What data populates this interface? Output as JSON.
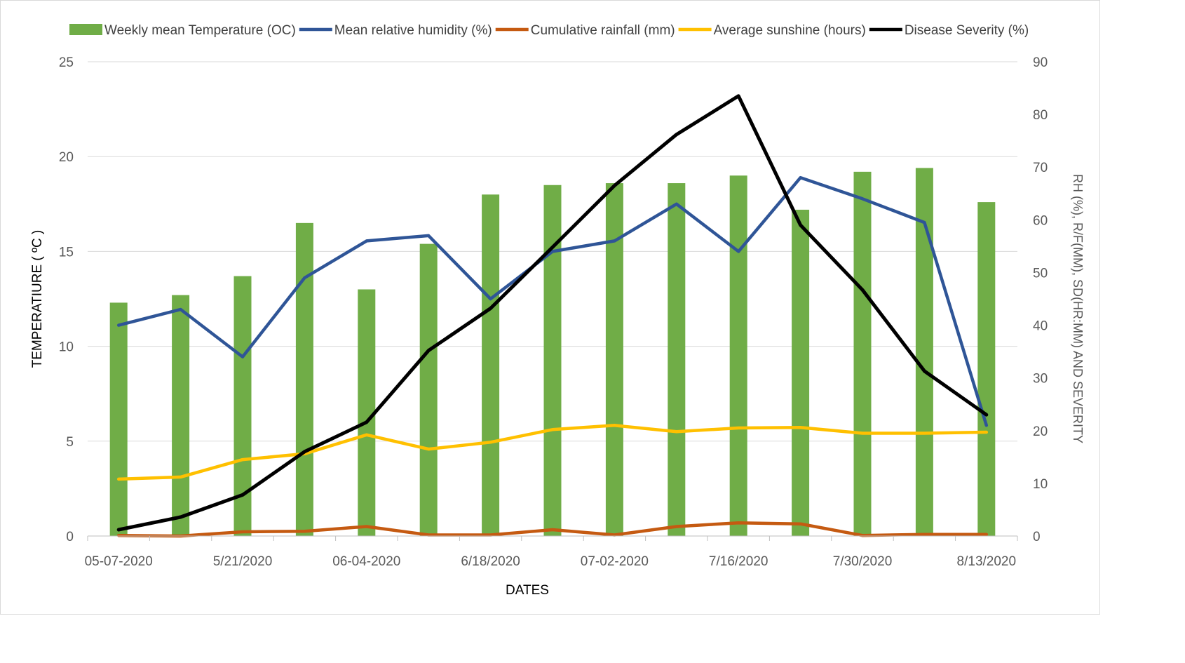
{
  "chart_data": {
    "type": "bar",
    "title": "",
    "xlabel": "DATES",
    "ylabel": "TEMPERATIURE ( ºC )",
    "y2label": "RH (%), R/F(MM), SD(HR:MM) AND SEVERITY",
    "ylim": [
      0,
      25
    ],
    "y2lim": [
      0,
      90
    ],
    "y_ticks": [
      "0",
      "5",
      "10",
      "15",
      "20",
      "25"
    ],
    "y2_ticks": [
      "0",
      "10",
      "20",
      "30",
      "40",
      "50",
      "60",
      "70",
      "80",
      "90"
    ],
    "categories": [
      "05-07-2020",
      "",
      "5/21/2020",
      "",
      "06-04-2020",
      "",
      "6/18/2020",
      "",
      "07-02-2020",
      "",
      "7/16/2020",
      "",
      "7/30/2020",
      "",
      "8/13/2020"
    ],
    "grid": true,
    "legend_position": "top",
    "series": [
      {
        "name": "Weekly mean Temperature (OC)",
        "kind": "bar",
        "axis": "left",
        "color": "#70ad47",
        "values": [
          12.3,
          12.7,
          13.7,
          16.5,
          13.0,
          15.4,
          18.0,
          18.5,
          18.6,
          18.6,
          19.0,
          17.2,
          19.2,
          19.4,
          17.6
        ]
      },
      {
        "name": "Mean relative humidity (%)",
        "kind": "line",
        "axis": "right",
        "color": "#2f5597",
        "values": [
          40.0,
          43.0,
          34.0,
          49.0,
          56.0,
          57.0,
          45.0,
          54.0,
          56.0,
          63.0,
          54.0,
          68.0,
          64.0,
          59.5,
          21.0
        ]
      },
      {
        "name": "Cumulative rainfall (mm)",
        "kind": "line",
        "axis": "right",
        "color": "#c55a11",
        "values": [
          0.1,
          0.0,
          0.8,
          0.9,
          1.8,
          0.2,
          0.2,
          1.2,
          0.2,
          1.8,
          2.5,
          2.3,
          0.1,
          0.3,
          0.3
        ]
      },
      {
        "name": "Average sunshine (hours)",
        "kind": "line",
        "axis": "right",
        "color": "#ffc000",
        "values": [
          10.8,
          11.2,
          14.5,
          15.6,
          19.2,
          16.5,
          17.8,
          20.2,
          21.0,
          19.8,
          20.5,
          20.6,
          19.5,
          19.5,
          19.7
        ]
      },
      {
        "name": "Disease Severity (%)",
        "kind": "line",
        "axis": "right",
        "color": "#000000",
        "values": [
          1.2,
          3.6,
          7.8,
          16.0,
          21.6,
          35.2,
          43.2,
          54.8,
          66.5,
          76.2,
          83.5,
          59.0,
          46.7,
          31.3,
          23.0
        ]
      }
    ]
  }
}
